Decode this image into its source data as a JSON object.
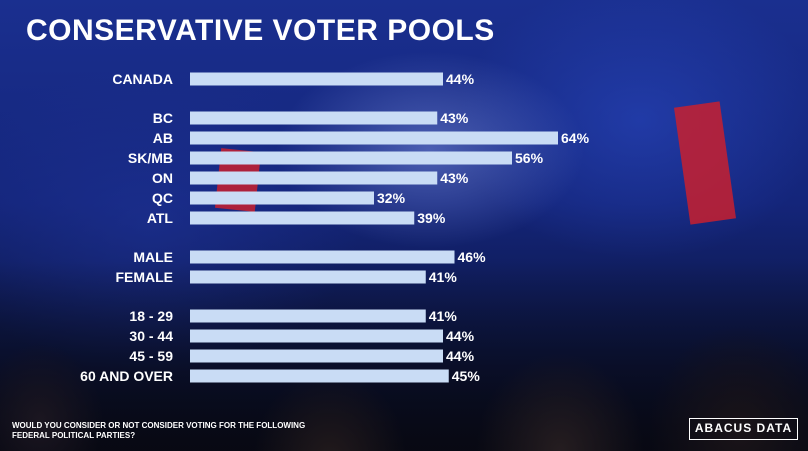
{
  "chart_data": {
    "type": "bar",
    "orientation": "horizontal",
    "title": "CONSERVATIVE VOTER POOLS",
    "footnote": "WOULD YOU CONSIDER OR NOT CONSIDER VOTING FOR THE FOLLOWING FEDERAL POLITICAL PARTIES?",
    "value_suffix": "%",
    "xlim": [
      0,
      70
    ],
    "grid": false,
    "legend": "none",
    "bar_color": "#c9dcf5",
    "groups": [
      {
        "categories": [
          "CANADA"
        ],
        "values": [
          44
        ]
      },
      {
        "categories": [
          "BC",
          "AB",
          "SK/MB",
          "ON",
          "QC",
          "ATL"
        ],
        "values": [
          43,
          64,
          56,
          43,
          32,
          39
        ]
      },
      {
        "categories": [
          "MALE",
          "FEMALE"
        ],
        "values": [
          46,
          41
        ]
      },
      {
        "categories": [
          "18 - 29",
          "30 - 44",
          "45 - 59",
          "60 AND OVER"
        ],
        "values": [
          41,
          44,
          44,
          45
        ]
      }
    ]
  },
  "branding": {
    "logo_text": "ABACUS DATA"
  }
}
